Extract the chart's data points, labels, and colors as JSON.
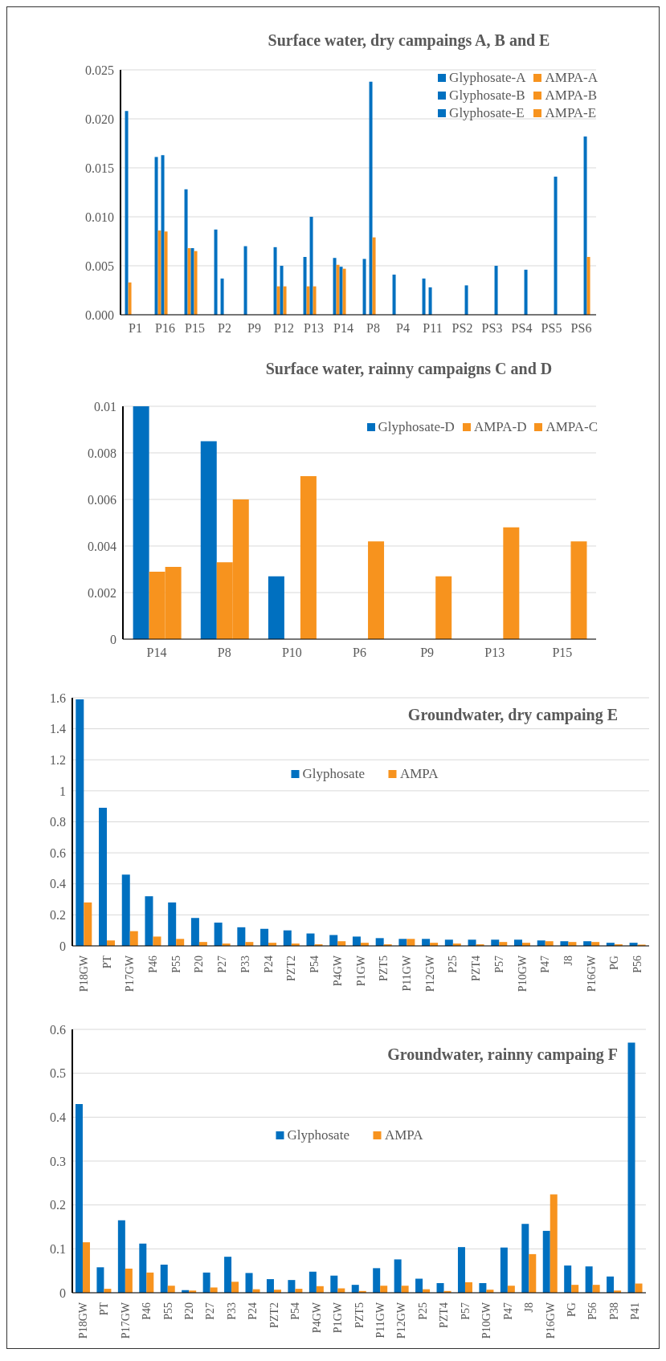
{
  "chart_data": [
    {
      "type": "bar",
      "title": "Surface water, dry campaings A, B and E",
      "categories": [
        "P1",
        "P16",
        "P15",
        "P2",
        "P9",
        "P12",
        "P13",
        "P14",
        "P8",
        "P4",
        "P11",
        "PS2",
        "PS3",
        "PS4",
        "PS5",
        "PS6"
      ],
      "series": [
        {
          "name": "Glyphosate-A",
          "color": "#0070c0",
          "values": [
            0.0208,
            0.0161,
            0.0128,
            0.0087,
            0.007,
            0.0069,
            0.0059,
            0.0058,
            0.0057,
            0.0041,
            0.0037,
            null,
            null,
            null,
            null,
            null
          ]
        },
        {
          "name": "AMPA-A",
          "color": "#f7931e",
          "values": [
            0.0033,
            0.0086,
            0.0068,
            null,
            null,
            0.0029,
            0.0029,
            0.0051,
            null,
            null,
            null,
            null,
            null,
            null,
            null,
            null
          ]
        },
        {
          "name": "Glyphosate-B",
          "color": "#0070c0",
          "values": [
            null,
            0.0163,
            0.0068,
            0.0037,
            null,
            0.005,
            0.01,
            0.0049,
            0.0238,
            null,
            0.0028,
            null,
            null,
            null,
            null,
            null
          ]
        },
        {
          "name": "AMPA-B",
          "color": "#f7931e",
          "values": [
            null,
            0.0085,
            0.0065,
            null,
            null,
            0.0029,
            0.0029,
            0.0047,
            0.0079,
            null,
            null,
            null,
            null,
            null,
            null,
            null
          ]
        },
        {
          "name": "Glyphosate-E",
          "color": "#0070c0",
          "values": [
            null,
            null,
            null,
            null,
            null,
            null,
            null,
            null,
            null,
            null,
            null,
            0.003,
            0.005,
            0.0046,
            0.0141,
            0.0182
          ]
        },
        {
          "name": "AMPA-E",
          "color": "#f7931e",
          "values": [
            null,
            null,
            null,
            null,
            null,
            null,
            null,
            null,
            null,
            null,
            null,
            null,
            null,
            null,
            null,
            0.0059
          ]
        }
      ],
      "ylim": [
        0,
        0.025
      ],
      "yticks": [
        {
          "value": 0,
          "label": "0.000"
        },
        {
          "value": 0.005,
          "label": "0.005"
        },
        {
          "value": 0.01,
          "label": "0.010"
        },
        {
          "value": 0.015,
          "label": "0.015"
        },
        {
          "value": 0.02,
          "label": "0.020"
        },
        {
          "value": 0.025,
          "label": "0.025"
        }
      ],
      "grid": "y",
      "legend": "top right"
    },
    {
      "type": "bar",
      "title": "Surface water, rainny campaigns C and D",
      "categories": [
        "P14",
        "P8",
        "P10",
        "P6",
        "P9",
        "P13",
        "P15"
      ],
      "series": [
        {
          "name": "Glyphosate-D",
          "color": "#0070c0",
          "values": [
            0.01,
            0.0085,
            0.0027,
            null,
            null,
            null,
            null
          ]
        },
        {
          "name": "AMPA-D",
          "color": "#f7931e",
          "values": [
            0.0029,
            0.0033,
            null,
            null,
            null,
            null,
            null
          ]
        },
        {
          "name": "AMPA-C",
          "color": "#f7931e",
          "values": [
            0.0031,
            0.006,
            0.007,
            0.0042,
            0.0027,
            0.0048,
            0.0042
          ]
        }
      ],
      "ylim": [
        0,
        0.01
      ],
      "yticks": [
        0,
        0.002,
        0.004,
        0.006,
        0.008,
        0.01
      ],
      "grid": "y",
      "legend": "top right"
    },
    {
      "type": "bar",
      "title": "Groundwater, dry campaing E",
      "categories": [
        "P18GW",
        "PT",
        "P17GW",
        "P46",
        "P55",
        "P20",
        "P27",
        "P33",
        "P24",
        "PZT2",
        "P54",
        "P4GW",
        "P1GW",
        "PZT5",
        "P11GW",
        "P12GW",
        "P25",
        "PZT4",
        "P57",
        "P10GW",
        "P47",
        "J8",
        "P16GW",
        "PG",
        "P56"
      ],
      "series": [
        {
          "name": "Glyphosate",
          "color": "#0070c0",
          "values": [
            1.59,
            0.89,
            0.46,
            0.32,
            0.28,
            0.18,
            0.15,
            0.12,
            0.11,
            0.1,
            0.08,
            0.07,
            0.06,
            0.05,
            0.045,
            0.045,
            0.04,
            0.04,
            0.04,
            0.04,
            0.035,
            0.03,
            0.03,
            0.02,
            0.02
          ]
        },
        {
          "name": "AMPA",
          "color": "#f7931e",
          "values": [
            0.28,
            0.035,
            0.095,
            0.06,
            0.045,
            0.025,
            0.015,
            0.025,
            0.02,
            0.015,
            0.01,
            0.03,
            0.02,
            0.01,
            0.045,
            0.02,
            0.015,
            0.01,
            0.025,
            0.02,
            0.03,
            0.025,
            0.025,
            0.01,
            0.008
          ]
        }
      ],
      "ylim": [
        0,
        1.6
      ],
      "yticks": [
        0,
        0.2,
        0.4,
        0.6,
        0.8,
        1,
        1.2,
        1.4,
        1.6
      ],
      "grid": "y",
      "legend": "top"
    },
    {
      "type": "bar",
      "title": "Groundwater, rainny campaing F",
      "categories": [
        "P18GW",
        "PT",
        "P17GW",
        "P46",
        "P55",
        "P20",
        "P27",
        "P33",
        "P24",
        "PZT2",
        "P54",
        "P4GW",
        "P1GW",
        "PZT5",
        "P11GW",
        "P12GW",
        "P25",
        "PZT4",
        "P57",
        "P10GW",
        "P47",
        "J8",
        "P16GW",
        "PG",
        "P56",
        "P38",
        "P41"
      ],
      "series": [
        {
          "name": "Glyphosate",
          "color": "#0070c0",
          "values": [
            0.43,
            0.058,
            0.165,
            0.112,
            0.064,
            0.006,
            0.046,
            0.082,
            0.045,
            0.031,
            0.029,
            0.048,
            0.039,
            0.018,
            0.056,
            0.076,
            0.032,
            0.022,
            0.104,
            0.022,
            0.103,
            0.157,
            0.141,
            0.062,
            0.06,
            0.037,
            0.57
          ]
        },
        {
          "name": "AMPA",
          "color": "#f7931e",
          "values": [
            0.115,
            0.009,
            0.055,
            0.046,
            0.016,
            0.005,
            0.012,
            0.025,
            0.008,
            0.007,
            0.009,
            0.015,
            0.01,
            0.004,
            0.016,
            0.016,
            0.008,
            0.004,
            0.024,
            0.007,
            0.016,
            0.088,
            0.224,
            0.018,
            0.018,
            0.005,
            0.021
          ]
        }
      ],
      "ylim": [
        0,
        0.6
      ],
      "yticks": [
        0,
        0.1,
        0.2,
        0.3,
        0.4,
        0.5,
        0.6
      ],
      "grid": "y",
      "legend": "top"
    }
  ]
}
